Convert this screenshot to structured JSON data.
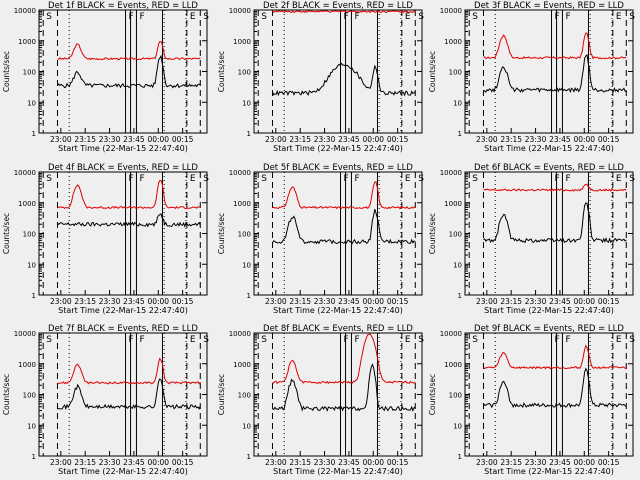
{
  "page": {
    "background": "#efefef"
  },
  "colors": {
    "events": "#000000",
    "lld": "#e00000",
    "frame": "#000000"
  },
  "axis": {
    "ylabel": "Counts/sec",
    "xlabel": "Start Time (22-Mar-15 22:47:40)",
    "x_ticks": [
      "23:00",
      "23:15",
      "23:30",
      "23:45",
      "00:00",
      "00:15"
    ],
    "y_ticks": [
      "1",
      "10",
      "100",
      "1000",
      "10000"
    ],
    "ylim": [
      1,
      10000
    ],
    "y_scale": "log"
  },
  "markers": {
    "letters": [
      "S",
      "F",
      "F",
      "E",
      "S"
    ]
  },
  "chart_data": [
    {
      "type": "line",
      "title": "Det 1f BLACK = Events, RED = LLD"
    },
    {
      "type": "line",
      "title": "Det 2f BLACK = Events, RED = LLD"
    },
    {
      "type": "line",
      "title": "Det 3f BLACK = Events, RED = LLD"
    },
    {
      "type": "line",
      "title": "Det 4f BLACK = Events, RED = LLD"
    },
    {
      "type": "line",
      "title": "Det 5f BLACK = Events, RED = LLD"
    },
    {
      "type": "line",
      "title": "Det 6f BLACK = Events, RED = LLD"
    },
    {
      "type": "line",
      "title": "Det 7f BLACK = Events, RED = LLD"
    },
    {
      "type": "line",
      "title": "Det 8f BLACK = Events, RED = LLD"
    },
    {
      "type": "line",
      "title": "Det 9f BLACK = Events, RED = LLD"
    }
  ]
}
